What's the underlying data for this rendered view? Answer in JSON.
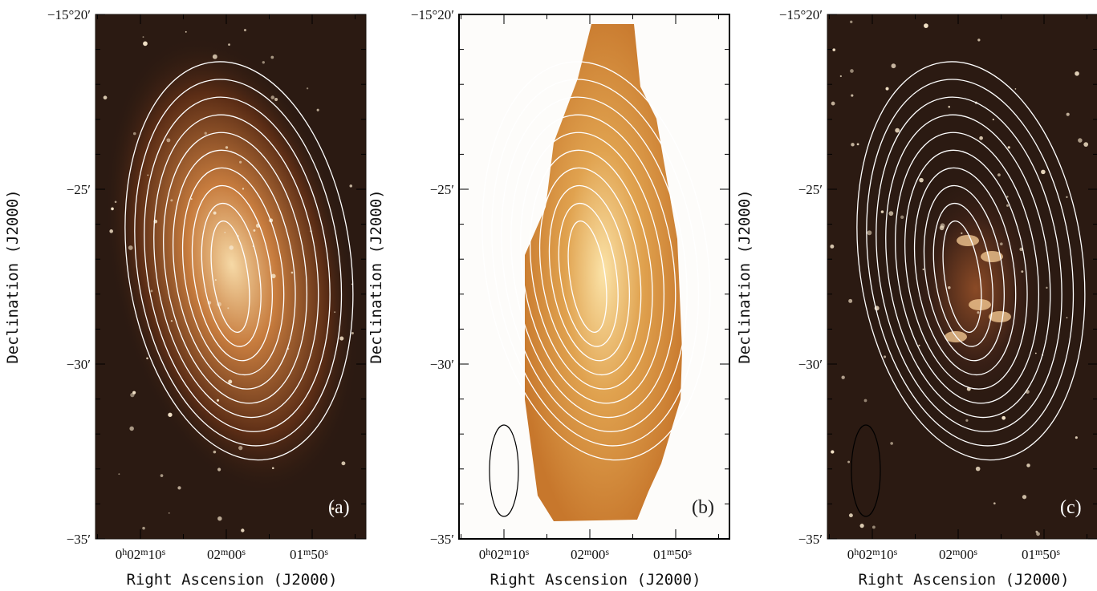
{
  "panels": [
    {
      "label": "(a)"
    },
    {
      "label": "(b)"
    },
    {
      "label": "(c)"
    }
  ],
  "y_axis": {
    "title": "Declination (J2000)",
    "ticks": [
      "−15°20′",
      "−25′",
      "−30′",
      "−35′"
    ]
  },
  "x_axis": {
    "title": "Right Ascension (J2000)",
    "ticks": [
      [
        "0",
        "h",
        "02",
        "m",
        "10",
        "s"
      ],
      [
        "02",
        "m",
        "00",
        "s"
      ],
      [
        "01",
        "m",
        "50",
        "s"
      ]
    ]
  }
}
